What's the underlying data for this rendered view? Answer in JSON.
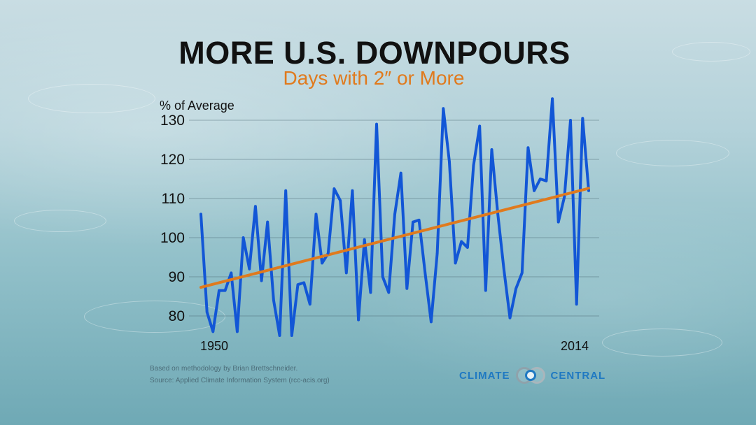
{
  "header": {
    "title": "MORE U.S. DOWNPOURS",
    "subtitle": "Days with 2″ or More"
  },
  "footer": {
    "note_line1": "Based on methodology by Brian Brettschneider.",
    "note_line2": "Source: Applied Climate Information System (rcc-acis.org)",
    "logo_left": "CLIMATE",
    "logo_right": "CENTRAL"
  },
  "colors": {
    "series": "#1256d6",
    "trend": "#e07a1d",
    "title": "#111111",
    "brand": "#1f79c2"
  },
  "chart_data": {
    "type": "line",
    "title": "MORE U.S. DOWNPOURS",
    "subtitle": "Days with 2″ or More",
    "ylabel": "% of Average",
    "xlabel": "",
    "ylim": [
      75,
      135
    ],
    "yticks": [
      80,
      90,
      100,
      110,
      120,
      130
    ],
    "xlim": [
      1950,
      2014
    ],
    "xtick_labels": [
      "1950",
      "2014"
    ],
    "grid": true,
    "x": [
      1950,
      1951,
      1952,
      1953,
      1954,
      1955,
      1956,
      1957,
      1958,
      1959,
      1960,
      1961,
      1962,
      1963,
      1964,
      1965,
      1966,
      1967,
      1968,
      1969,
      1970,
      1971,
      1972,
      1973,
      1974,
      1975,
      1976,
      1977,
      1978,
      1979,
      1980,
      1981,
      1982,
      1983,
      1984,
      1985,
      1986,
      1987,
      1988,
      1989,
      1990,
      1991,
      1992,
      1993,
      1994,
      1995,
      1996,
      1997,
      1998,
      1999,
      2000,
      2001,
      2002,
      2003,
      2004,
      2005,
      2006,
      2007,
      2008,
      2009,
      2010,
      2011,
      2012,
      2013,
      2014
    ],
    "series": [
      {
        "values": [
          106,
          81,
          76,
          86.5,
          86.5,
          91,
          76,
          100,
          92,
          108,
          89,
          104,
          84,
          75,
          112,
          75,
          88,
          88.5,
          83,
          106,
          93.5,
          96,
          112.5,
          109.5,
          91,
          112,
          79,
          99.5,
          86,
          129,
          90,
          86,
          106,
          116.5,
          87,
          104,
          104.5,
          91,
          78.5,
          96,
          133,
          119.5,
          93.5,
          99,
          97.5,
          118.5,
          128.5,
          86.5,
          122.5,
          106,
          92,
          79.5,
          87,
          91,
          123,
          112,
          115,
          114.5,
          135.5,
          104,
          110.5,
          130,
          83,
          130.5,
          112
        ]
      }
    ],
    "trend": {
      "start": [
        1950,
        87.3
      ],
      "end": [
        2014,
        112.6
      ]
    }
  }
}
